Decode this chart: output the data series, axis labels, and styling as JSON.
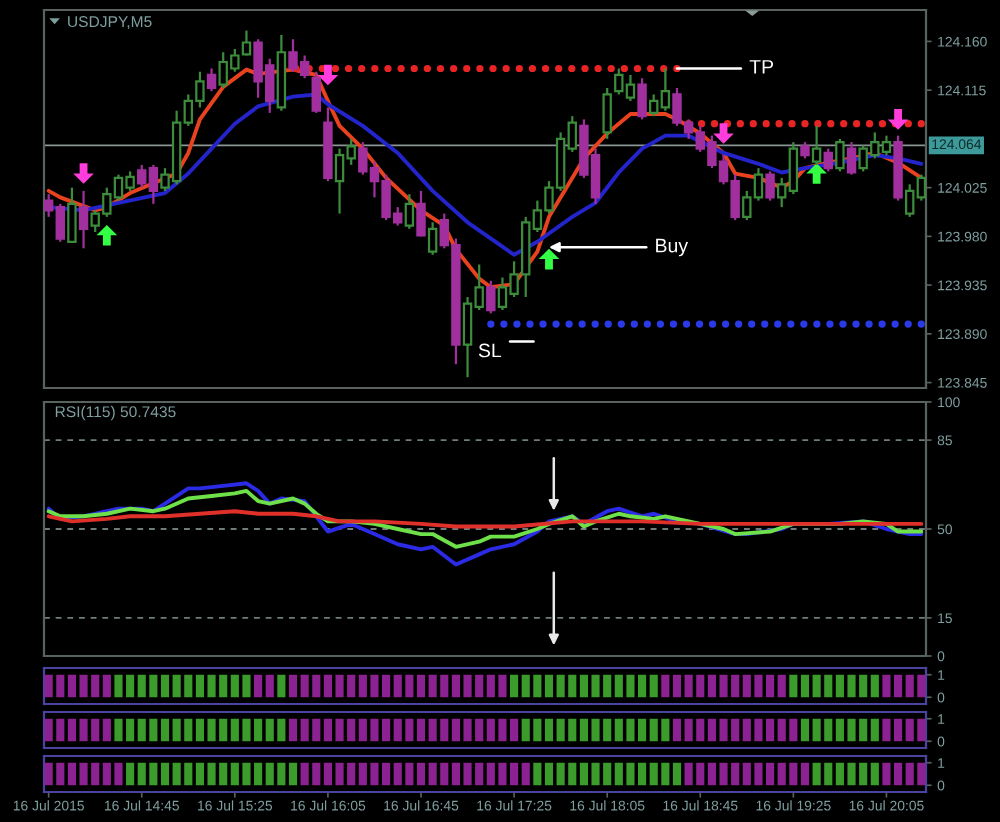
{
  "chart_data": [
    {
      "type": "candlestick",
      "title": "USDJPY,M5",
      "x": [
        "2015-07-16T14:05",
        "2015-07-16T14:10",
        "2015-07-16T14:15",
        "2015-07-16T14:20",
        "2015-07-16T14:25",
        "2015-07-16T14:30",
        "2015-07-16T14:35",
        "2015-07-16T14:40",
        "2015-07-16T14:45",
        "2015-07-16T14:50",
        "2015-07-16T14:55",
        "2015-07-16T15:00",
        "2015-07-16T15:05",
        "2015-07-16T15:10",
        "2015-07-16T15:15",
        "2015-07-16T15:20",
        "2015-07-16T15:25",
        "2015-07-16T15:30",
        "2015-07-16T15:35",
        "2015-07-16T15:40",
        "2015-07-16T15:45",
        "2015-07-16T15:50",
        "2015-07-16T15:55",
        "2015-07-16T16:00",
        "2015-07-16T16:05",
        "2015-07-16T16:10",
        "2015-07-16T16:15",
        "2015-07-16T16:20",
        "2015-07-16T16:25",
        "2015-07-16T16:30",
        "2015-07-16T16:35",
        "2015-07-16T16:40",
        "2015-07-16T16:45",
        "2015-07-16T16:50",
        "2015-07-16T16:55",
        "2015-07-16T17:00",
        "2015-07-16T17:05",
        "2015-07-16T17:10",
        "2015-07-16T17:15",
        "2015-07-16T17:20",
        "2015-07-16T17:25",
        "2015-07-16T17:30",
        "2015-07-16T17:35",
        "2015-07-16T17:40",
        "2015-07-16T17:45",
        "2015-07-16T17:50",
        "2015-07-16T17:55",
        "2015-07-16T18:00",
        "2015-07-16T18:05",
        "2015-07-16T18:10",
        "2015-07-16T18:15",
        "2015-07-16T18:20",
        "2015-07-16T18:25",
        "2015-07-16T18:30",
        "2015-07-16T18:35",
        "2015-07-16T18:40",
        "2015-07-16T18:45",
        "2015-07-16T18:50",
        "2015-07-16T18:55",
        "2015-07-16T19:00",
        "2015-07-16T19:05",
        "2015-07-16T19:10",
        "2015-07-16T19:15",
        "2015-07-16T19:20",
        "2015-07-16T19:25",
        "2015-07-16T19:30",
        "2015-07-16T19:35",
        "2015-07-16T19:40",
        "2015-07-16T19:45",
        "2015-07-16T19:50",
        "2015-07-16T19:55",
        "2015-07-16T20:00",
        "2015-07-16T20:05",
        "2015-07-16T20:10",
        "2015-07-16T20:15",
        "2015-07-16T20:20"
      ],
      "ohlc": [
        [
          124.013,
          124.019,
          123.998,
          124.004
        ],
        [
          124.007,
          124.01,
          123.975,
          123.978
        ],
        [
          123.975,
          124.025,
          123.974,
          124.01
        ],
        [
          124.007,
          124.022,
          123.969,
          123.987
        ],
        [
          123.99,
          124.004,
          123.984,
          124.001
        ],
        [
          124.001,
          124.025,
          123.998,
          124.019
        ],
        [
          124.016,
          124.037,
          124.013,
          124.034
        ],
        [
          124.025,
          124.04,
          124.022,
          124.035
        ],
        [
          124.041,
          124.046,
          124.025,
          124.029
        ],
        [
          124.043,
          124.046,
          124.01,
          124.022
        ],
        [
          124.025,
          124.043,
          124.022,
          124.037
        ],
        [
          124.031,
          124.096,
          124.028,
          124.085
        ],
        [
          124.085,
          124.111,
          124.082,
          124.105
        ],
        [
          124.105,
          124.132,
          124.099,
          124.123
        ],
        [
          124.129,
          124.135,
          124.114,
          124.117
        ],
        [
          124.12,
          124.15,
          124.117,
          124.141
        ],
        [
          124.135,
          124.153,
          124.132,
          124.147
        ],
        [
          124.148,
          124.17,
          124.147,
          124.159
        ],
        [
          124.159,
          124.162,
          124.108,
          124.123
        ],
        [
          124.138,
          124.144,
          124.094,
          124.105
        ],
        [
          124.099,
          124.166,
          124.096,
          124.15
        ],
        [
          124.15,
          124.162,
          124.132,
          124.135
        ],
        [
          124.141,
          124.147,
          124.126,
          124.129
        ],
        [
          124.126,
          124.132,
          124.094,
          124.096
        ],
        [
          124.085,
          124.099,
          124.031,
          124.034
        ],
        [
          124.031,
          124.061,
          124.001,
          124.055
        ],
        [
          124.052,
          124.07,
          124.046,
          124.063
        ],
        [
          124.061,
          124.067,
          124.037,
          124.04
        ],
        [
          124.043,
          124.049,
          124.016,
          124.031
        ],
        [
          124.031,
          124.037,
          123.995,
          123.998
        ],
        [
          124.001,
          124.007,
          123.99,
          123.993
        ],
        [
          123.99,
          124.019,
          123.987,
          124.01
        ],
        [
          124.01,
          124.022,
          123.98,
          123.981
        ],
        [
          123.966,
          123.993,
          123.963,
          123.987
        ],
        [
          123.995,
          124.001,
          123.969,
          123.972
        ],
        [
          123.972,
          123.978,
          123.862,
          123.88
        ],
        [
          123.88,
          123.924,
          123.85,
          123.918
        ],
        [
          123.915,
          123.954,
          123.912,
          123.933
        ],
        [
          123.933,
          123.939,
          123.909,
          123.912
        ],
        [
          123.915,
          123.942,
          123.912,
          123.933
        ],
        [
          123.927,
          123.957,
          123.924,
          123.945
        ],
        [
          123.945,
          123.998,
          123.924,
          123.993
        ],
        [
          123.987,
          124.013,
          123.984,
          124.004
        ],
        [
          124.004,
          124.031,
          124.001,
          124.025
        ],
        [
          124.025,
          124.076,
          124.022,
          124.07
        ],
        [
          124.061,
          124.091,
          124.058,
          124.085
        ],
        [
          124.082,
          124.088,
          124.034,
          124.037
        ],
        [
          124.055,
          124.061,
          124.01,
          124.016
        ],
        [
          124.076,
          124.117,
          124.07,
          124.111
        ],
        [
          124.114,
          124.135,
          124.111,
          124.129
        ],
        [
          124.108,
          124.129,
          124.105,
          124.12
        ],
        [
          124.12,
          124.126,
          124.088,
          124.091
        ],
        [
          124.094,
          124.111,
          124.091,
          124.105
        ],
        [
          124.099,
          124.135,
          124.096,
          124.114
        ],
        [
          124.111,
          124.117,
          124.082,
          124.085
        ],
        [
          124.085,
          124.088,
          124.07,
          124.076
        ],
        [
          124.076,
          124.082,
          124.058,
          124.061
        ],
        [
          124.067,
          124.073,
          124.043,
          124.046
        ],
        [
          124.049,
          124.055,
          124.028,
          124.031
        ],
        [
          124.031,
          124.037,
          123.995,
          123.998
        ],
        [
          123.998,
          124.022,
          123.995,
          124.016
        ],
        [
          124.016,
          124.043,
          124.013,
          124.037
        ],
        [
          124.037,
          124.04,
          124.013,
          124.016
        ],
        [
          124.016,
          124.034,
          124.007,
          124.028
        ],
        [
          124.022,
          124.067,
          124.019,
          124.061
        ],
        [
          124.063,
          124.067,
          124.052,
          124.055
        ],
        [
          124.049,
          124.082,
          124.046,
          124.061
        ],
        [
          124.057,
          124.061,
          124.04,
          124.043
        ],
        [
          124.043,
          124.07,
          124.04,
          124.067
        ],
        [
          124.061,
          124.067,
          124.037,
          124.039
        ],
        [
          124.043,
          124.064,
          124.04,
          124.061
        ],
        [
          124.055,
          124.076,
          124.052,
          124.067
        ],
        [
          124.058,
          124.073,
          124.055,
          124.067
        ],
        [
          124.067,
          124.073,
          124.013,
          124.016
        ],
        [
          124.001,
          124.028,
          123.998,
          124.022
        ],
        [
          124.016,
          124.037,
          124.013,
          124.034
        ]
      ],
      "colors": [
        "#a1309e",
        "#a1309e",
        "#3c8c3c",
        "#a1309e",
        "#3c8c3c",
        "#3c8c3c",
        "#3c8c3c",
        "#3c8c3c",
        "#a1309e",
        "#a1309e",
        "#3c8c3c",
        "#3c8c3c",
        "#3c8c3c",
        "#3c8c3c",
        "#a1309e",
        "#3c8c3c",
        "#3c8c3c",
        "#3c8c3c",
        "#a1309e",
        "#a1309e",
        "#3c8c3c",
        "#a1309e",
        "#a1309e",
        "#a1309e",
        "#a1309e",
        "#3c8c3c",
        "#3c8c3c",
        "#a1309e",
        "#a1309e",
        "#a1309e",
        "#a1309e",
        "#3c8c3c",
        "#a1309e",
        "#3c8c3c",
        "#a1309e",
        "#a1309e",
        "#3c8c3c",
        "#3c8c3c",
        "#a1309e",
        "#3c8c3c",
        "#3c8c3c",
        "#3c8c3c",
        "#3c8c3c",
        "#3c8c3c",
        "#3c8c3c",
        "#3c8c3c",
        "#a1309e",
        "#a1309e",
        "#3c8c3c",
        "#3c8c3c",
        "#3c8c3c",
        "#a1309e",
        "#3c8c3c",
        "#3c8c3c",
        "#a1309e",
        "#a1309e",
        "#a1309e",
        "#a1309e",
        "#a1309e",
        "#a1309e",
        "#3c8c3c",
        "#3c8c3c",
        "#a1309e",
        "#3c8c3c",
        "#3c8c3c",
        "#a1309e",
        "#3c8c3c",
        "#a1309e",
        "#3c8c3c",
        "#a1309e",
        "#3c8c3c",
        "#3c8c3c",
        "#3c8c3c",
        "#a1309e",
        "#3c8c3c",
        "#3c8c3c"
      ],
      "series": [
        {
          "type": "line",
          "color": "#e8421e",
          "x": [
            "2015-07-16T14:05",
            "2015-07-16T14:10",
            "2015-07-16T14:25",
            "2015-07-16T14:30",
            "2015-07-16T14:40",
            "2015-07-16T14:50",
            "2015-07-16T15:00",
            "2015-07-16T15:05",
            "2015-07-16T15:10",
            "2015-07-16T15:20",
            "2015-07-16T15:30",
            "2015-07-16T15:35",
            "2015-07-16T15:50",
            "2015-07-16T16:00",
            "2015-07-16T16:05",
            "2015-07-16T16:10",
            "2015-07-16T16:20",
            "2015-07-16T16:30",
            "2015-07-16T16:45",
            "2015-07-16T16:55",
            "2015-07-16T17:00",
            "2015-07-16T17:10",
            "2015-07-16T17:15",
            "2015-07-16T17:25",
            "2015-07-16T17:35",
            "2015-07-16T17:40",
            "2015-07-16T17:50",
            "2015-07-16T17:55",
            "2015-07-16T18:05",
            "2015-07-16T18:15",
            "2015-07-16T18:20",
            "2015-07-16T18:30",
            "2015-07-16T18:35",
            "2015-07-16T18:45",
            "2015-07-16T18:55",
            "2015-07-16T19:00",
            "2015-07-16T19:10",
            "2015-07-16T19:20",
            "2015-07-16T19:25",
            "2015-07-16T19:30",
            "2015-07-16T19:40",
            "2015-07-16T19:50",
            "2015-07-16T20:00",
            "2015-07-16T20:10",
            "2015-07-16T20:20"
          ],
          "values": [
            124.022,
            124.016,
            124.004,
            124.007,
            124.02,
            124.029,
            124.038,
            124.057,
            124.088,
            124.118,
            124.134,
            124.13,
            124.134,
            124.129,
            124.105,
            124.082,
            124.061,
            124.034,
            124.004,
            123.99,
            123.968,
            123.941,
            123.933,
            123.936,
            123.966,
            123.998,
            124.034,
            124.052,
            124.075,
            124.093,
            124.093,
            124.093,
            124.088,
            124.075,
            124.057,
            124.038,
            124.034,
            124.025,
            124.031,
            124.043,
            124.048,
            124.052,
            124.057,
            124.048,
            124.034
          ]
        },
        {
          "type": "line",
          "color": "#2424cc",
          "x": [
            "2015-07-16T14:05",
            "2015-07-16T14:20",
            "2015-07-16T14:35",
            "2015-07-16T14:55",
            "2015-07-16T15:05",
            "2015-07-16T15:15",
            "2015-07-16T15:25",
            "2015-07-16T15:35",
            "2015-07-16T15:50",
            "2015-07-16T16:00",
            "2015-07-16T16:05",
            "2015-07-16T16:20",
            "2015-07-16T16:35",
            "2015-07-16T16:50",
            "2015-07-16T17:05",
            "2015-07-16T17:25",
            "2015-07-16T17:35",
            "2015-07-16T17:50",
            "2015-07-16T18:00",
            "2015-07-16T18:10",
            "2015-07-16T18:20",
            "2015-07-16T18:30",
            "2015-07-16T18:40",
            "2015-07-16T18:55",
            "2015-07-16T19:10",
            "2015-07-16T19:20",
            "2015-07-16T19:30",
            "2015-07-16T19:45",
            "2015-07-16T20:00",
            "2015-07-16T20:10",
            "2015-07-16T20:20"
          ],
          "values": [
            124.007,
            124.004,
            124.011,
            124.02,
            124.038,
            124.061,
            124.084,
            124.1,
            124.109,
            124.111,
            124.102,
            124.082,
            124.057,
            124.022,
            123.993,
            123.963,
            123.975,
            123.998,
            124.011,
            124.039,
            124.061,
            124.073,
            124.073,
            124.057,
            124.047,
            124.039,
            124.043,
            124.048,
            124.055,
            124.052,
            124.047
          ]
        },
        {
          "type": "line",
          "line_style": "dotted",
          "color": "#e82424",
          "x": [
            "2015-07-16T15:40",
            "2015-07-16T18:35"
          ],
          "values": [
            124.135,
            124.135
          ]
        },
        {
          "type": "line",
          "line_style": "dotted",
          "color": "#e82424",
          "x": [
            "2015-07-16T18:40",
            "2015-07-16T20:20"
          ],
          "values": [
            124.084,
            124.084
          ]
        },
        {
          "type": "line",
          "line_style": "dotted",
          "color": "#2a3ae8",
          "x": [
            "2015-07-16T17:15",
            "2015-07-16T20:20"
          ],
          "values": [
            123.899,
            123.899
          ]
        },
        {
          "type": "scatter",
          "marker": "triangle",
          "color": "#33ff44",
          "x": [
            "2015-07-16T14:30",
            "2015-07-16T17:40",
            "2015-07-16T19:35"
          ],
          "values": [
            123.981,
            123.959,
            124.038
          ]
        },
        {
          "type": "scatter",
          "marker": "triangle_down",
          "color": "#ff3ddc",
          "x": [
            "2015-07-16T14:20",
            "2015-07-16T16:05",
            "2015-07-16T18:55",
            "2015-07-16T20:10"
          ],
          "values": [
            124.038,
            124.129,
            124.075,
            124.088
          ]
        }
      ],
      "xlim": [
        "2015-07-16T14:03",
        "2015-07-16T20:22"
      ],
      "ylim": [
        123.84,
        124.189
      ],
      "yticks": [
        {
          "value": 123.845,
          "label": "123.845"
        },
        {
          "value": 123.89,
          "label": "123.890"
        },
        {
          "value": 123.935,
          "label": "123.935"
        },
        {
          "value": 123.98,
          "label": "123.980"
        },
        {
          "value": 124.025,
          "label": "124.025"
        },
        {
          "value": 124.115,
          "label": "124.115"
        },
        {
          "value": 124.16,
          "label": "124.160"
        }
      ],
      "ref_lines": [
        {
          "axis": "y",
          "value": 124.064,
          "label": "124.064",
          "color": "#8a9595"
        }
      ],
      "annotations": [
        {
          "text": "TP",
          "x": "2015-07-16T18:35",
          "y": 124.135
        },
        {
          "text": "Buy",
          "x": "2015-07-16T17:40",
          "y": 123.97
        },
        "SL"
      ],
      "tick_labels": "y"
    },
    {
      "type": "line",
      "title": "RSI(115) 50.7435",
      "series": [
        {
          "type": "line",
          "color": "#2b2be6",
          "x": [
            "2015-07-16T14:05",
            "2015-07-16T14:10",
            "2015-07-16T14:20",
            "2015-07-16T14:30",
            "2015-07-16T14:35",
            "2015-07-16T14:45",
            "2015-07-16T14:50",
            "2015-07-16T14:55",
            "2015-07-16T15:05",
            "2015-07-16T15:10",
            "2015-07-16T15:20",
            "2015-07-16T15:30",
            "2015-07-16T15:35",
            "2015-07-16T15:40",
            "2015-07-16T15:45",
            "2015-07-16T15:55",
            "2015-07-16T16:00",
            "2015-07-16T16:05",
            "2015-07-16T16:15",
            "2015-07-16T16:25",
            "2015-07-16T16:35",
            "2015-07-16T16:45",
            "2015-07-16T16:50",
            "2015-07-16T17:00",
            "2015-07-16T17:10",
            "2015-07-16T17:15",
            "2015-07-16T17:25",
            "2015-07-16T17:35",
            "2015-07-16T17:40",
            "2015-07-16T17:50",
            "2015-07-16T17:55",
            "2015-07-16T18:05",
            "2015-07-16T18:10",
            "2015-07-16T18:20",
            "2015-07-16T18:25",
            "2015-07-16T18:35",
            "2015-07-16T18:45",
            "2015-07-16T19:00",
            "2015-07-16T19:05",
            "2015-07-16T19:20",
            "2015-07-16T19:25",
            "2015-07-16T19:40",
            "2015-07-16T19:55",
            "2015-07-16T20:05",
            "2015-07-16T20:15",
            "2015-07-16T20:20"
          ],
          "values": [
            58,
            54,
            55,
            57,
            58,
            58,
            57,
            60,
            66,
            66,
            67,
            68,
            65,
            60,
            62,
            61,
            55,
            49,
            52,
            48,
            44,
            42,
            43,
            36,
            40,
            42,
            44,
            49,
            53,
            55,
            52,
            57,
            58,
            55,
            56,
            53,
            52,
            48,
            48,
            50,
            52,
            52,
            53,
            50,
            48,
            48
          ]
        },
        {
          "type": "line",
          "color": "#6ee04a",
          "x": [
            "2015-07-16T14:05",
            "2015-07-16T14:10",
            "2015-07-16T14:20",
            "2015-07-16T14:30",
            "2015-07-16T14:40",
            "2015-07-16T14:50",
            "2015-07-16T14:55",
            "2015-07-16T15:05",
            "2015-07-16T15:15",
            "2015-07-16T15:25",
            "2015-07-16T15:30",
            "2015-07-16T15:35",
            "2015-07-16T15:40",
            "2015-07-16T15:50",
            "2015-07-16T15:55",
            "2015-07-16T16:00",
            "2015-07-16T16:05",
            "2015-07-16T16:15",
            "2015-07-16T16:25",
            "2015-07-16T16:35",
            "2015-07-16T16:45",
            "2015-07-16T16:50",
            "2015-07-16T17:00",
            "2015-07-16T17:10",
            "2015-07-16T17:15",
            "2015-07-16T17:25",
            "2015-07-16T17:35",
            "2015-07-16T17:40",
            "2015-07-16T17:50",
            "2015-07-16T17:55",
            "2015-07-16T18:00",
            "2015-07-16T18:10",
            "2015-07-16T18:15",
            "2015-07-16T18:25",
            "2015-07-16T18:30",
            "2015-07-16T18:40",
            "2015-07-16T18:45",
            "2015-07-16T18:55",
            "2015-07-16T19:00",
            "2015-07-16T19:15",
            "2015-07-16T19:25",
            "2015-07-16T19:35",
            "2015-07-16T19:45",
            "2015-07-16T19:55",
            "2015-07-16T20:05",
            "2015-07-16T20:10",
            "2015-07-16T20:20"
          ],
          "values": [
            57,
            55,
            55,
            56,
            58,
            57,
            58,
            62,
            63,
            64,
            65,
            61,
            60,
            62,
            60,
            56,
            53,
            53,
            52,
            50,
            48,
            48,
            43,
            45,
            47,
            47,
            50,
            52,
            55,
            51,
            53,
            56,
            55,
            54,
            55,
            53,
            52,
            50,
            48,
            49,
            52,
            52,
            52,
            53,
            52,
            49,
            49
          ]
        },
        {
          "type": "line",
          "color": "#e0302a",
          "x": [
            "2015-07-16T14:05",
            "2015-07-16T14:15",
            "2015-07-16T14:30",
            "2015-07-16T14:40",
            "2015-07-16T14:55",
            "2015-07-16T15:10",
            "2015-07-16T15:25",
            "2015-07-16T15:35",
            "2015-07-16T15:50",
            "2015-07-16T16:00",
            "2015-07-16T16:10",
            "2015-07-16T16:25",
            "2015-07-16T16:45",
            "2015-07-16T17:00",
            "2015-07-16T17:10",
            "2015-07-16T17:25",
            "2015-07-16T17:50",
            "2015-07-16T18:20",
            "2015-07-16T18:45",
            "2015-07-16T19:15",
            "2015-07-16T19:40",
            "2015-07-16T20:05",
            "2015-07-16T20:20"
          ],
          "values": [
            55,
            53,
            54,
            55,
            55,
            56,
            57,
            56,
            56,
            55,
            53,
            53,
            52,
            51,
            51,
            51,
            53,
            53,
            52,
            52,
            52,
            52,
            52
          ]
        }
      ],
      "xlim": [
        "2015-07-16T14:03",
        "2015-07-16T20:22"
      ],
      "ylim": [
        0,
        100
      ],
      "yticks": [
        0,
        15,
        50,
        85,
        100
      ],
      "ref_lines": [
        {
          "axis": "y",
          "value": 85,
          "line_style": "dashed",
          "color": "#6f7d7d"
        },
        {
          "axis": "y",
          "value": 50,
          "line_style": "dashed",
          "color": "#6f7d7d"
        },
        {
          "axis": "y",
          "value": 15,
          "line_style": "dashed",
          "color": "#6f7d7d"
        }
      ],
      "tick_labels": "y"
    },
    {
      "type": "bar",
      "x": [
        "2015-07-16T14:05",
        "2015-07-16T14:10",
        "2015-07-16T14:15",
        "2015-07-16T14:20",
        "2015-07-16T14:25",
        "2015-07-16T14:30",
        "2015-07-16T14:35",
        "2015-07-16T14:40",
        "2015-07-16T14:45",
        "2015-07-16T14:50",
        "2015-07-16T14:55",
        "2015-07-16T15:00",
        "2015-07-16T15:05",
        "2015-07-16T15:10",
        "2015-07-16T15:15",
        "2015-07-16T15:20",
        "2015-07-16T15:25",
        "2015-07-16T15:30",
        "2015-07-16T15:35",
        "2015-07-16T15:40",
        "2015-07-16T15:45",
        "2015-07-16T15:50",
        "2015-07-16T15:55",
        "2015-07-16T16:00",
        "2015-07-16T16:05",
        "2015-07-16T16:10",
        "2015-07-16T16:15",
        "2015-07-16T16:20",
        "2015-07-16T16:25",
        "2015-07-16T16:30",
        "2015-07-16T16:35",
        "2015-07-16T16:40",
        "2015-07-16T16:45",
        "2015-07-16T16:50",
        "2015-07-16T16:55",
        "2015-07-16T17:00",
        "2015-07-16T17:05",
        "2015-07-16T17:10",
        "2015-07-16T17:15",
        "2015-07-16T17:20",
        "2015-07-16T17:25",
        "2015-07-16T17:30",
        "2015-07-16T17:35",
        "2015-07-16T17:40",
        "2015-07-16T17:45",
        "2015-07-16T17:50",
        "2015-07-16T17:55",
        "2015-07-16T18:00",
        "2015-07-16T18:05",
        "2015-07-16T18:10",
        "2015-07-16T18:15",
        "2015-07-16T18:20",
        "2015-07-16T18:25",
        "2015-07-16T18:30",
        "2015-07-16T18:35",
        "2015-07-16T18:40",
        "2015-07-16T18:45",
        "2015-07-16T18:50",
        "2015-07-16T18:55",
        "2015-07-16T19:00",
        "2015-07-16T19:05",
        "2015-07-16T19:10",
        "2015-07-16T19:15",
        "2015-07-16T19:20",
        "2015-07-16T19:25",
        "2015-07-16T19:30",
        "2015-07-16T19:35",
        "2015-07-16T19:40",
        "2015-07-16T19:45",
        "2015-07-16T19:50",
        "2015-07-16T19:55",
        "2015-07-16T20:00",
        "2015-07-16T20:05",
        "2015-07-16T20:10",
        "2015-07-16T20:15",
        "2015-07-16T20:20"
      ],
      "values": [
        1,
        1,
        1,
        1,
        1,
        1,
        1,
        1,
        1,
        1,
        1,
        1,
        1,
        1,
        1,
        1,
        1,
        1,
        1,
        1,
        1,
        1,
        1,
        1,
        1,
        1,
        1,
        1,
        1,
        1,
        1,
        1,
        1,
        1,
        1,
        1,
        1,
        1,
        1,
        1,
        1,
        1,
        1,
        1,
        1,
        1,
        1,
        1,
        1,
        1,
        1,
        1,
        1,
        1,
        1,
        1,
        1,
        1,
        1,
        1,
        1,
        1,
        1,
        1,
        1,
        1,
        1,
        1,
        1,
        1,
        1,
        1,
        1,
        1,
        1,
        1
      ],
      "colors": [
        "#8c2291",
        "#8c2291",
        "#8c2291",
        "#8c2291",
        "#8c2291",
        "#8c2291",
        "#3b9b2b",
        "#3b9b2b",
        "#3b9b2b",
        "#3b9b2b",
        "#3b9b2b",
        "#3b9b2b",
        "#3b9b2b",
        "#3b9b2b",
        "#3b9b2b",
        "#3b9b2b",
        "#3b9b2b",
        "#3b9b2b",
        "#8c2291",
        "#8c2291",
        "#3b9b2b",
        "#8c2291",
        "#8c2291",
        "#8c2291",
        "#8c2291",
        "#8c2291",
        "#8c2291",
        "#8c2291",
        "#8c2291",
        "#8c2291",
        "#8c2291",
        "#8c2291",
        "#8c2291",
        "#8c2291",
        "#8c2291",
        "#8c2291",
        "#8c2291",
        "#8c2291",
        "#8c2291",
        "#8c2291",
        "#3b9b2b",
        "#3b9b2b",
        "#3b9b2b",
        "#3b9b2b",
        "#3b9b2b",
        "#3b9b2b",
        "#3b9b2b",
        "#3b9b2b",
        "#3b9b2b",
        "#3b9b2b",
        "#3b9b2b",
        "#3b9b2b",
        "#3b9b2b",
        "#8c2291",
        "#8c2291",
        "#8c2291",
        "#8c2291",
        "#8c2291",
        "#8c2291",
        "#8c2291",
        "#8c2291",
        "#8c2291",
        "#8c2291",
        "#8c2291",
        "#3b9b2b",
        "#3b9b2b",
        "#3b9b2b",
        "#3b9b2b",
        "#3b9b2b",
        "#3b9b2b",
        "#3b9b2b",
        "#3b9b2b",
        "#8c2291",
        "#8c2291",
        "#8c2291",
        "#8c2291"
      ],
      "xlim": [
        "2015-07-16T14:03",
        "2015-07-16T20:22"
      ],
      "ylim": [
        -0.3,
        1.3
      ],
      "yticks": [
        0,
        1
      ],
      "tick_labels": "y"
    },
    {
      "type": "bar",
      "x": [
        "2015-07-16T14:05",
        "2015-07-16T14:10",
        "2015-07-16T14:15",
        "2015-07-16T14:20",
        "2015-07-16T14:25",
        "2015-07-16T14:30",
        "2015-07-16T14:35",
        "2015-07-16T14:40",
        "2015-07-16T14:45",
        "2015-07-16T14:50",
        "2015-07-16T14:55",
        "2015-07-16T15:00",
        "2015-07-16T15:05",
        "2015-07-16T15:10",
        "2015-07-16T15:15",
        "2015-07-16T15:20",
        "2015-07-16T15:25",
        "2015-07-16T15:30",
        "2015-07-16T15:35",
        "2015-07-16T15:40",
        "2015-07-16T15:45",
        "2015-07-16T15:50",
        "2015-07-16T15:55",
        "2015-07-16T16:00",
        "2015-07-16T16:05",
        "2015-07-16T16:10",
        "2015-07-16T16:15",
        "2015-07-16T16:20",
        "2015-07-16T16:25",
        "2015-07-16T16:30",
        "2015-07-16T16:35",
        "2015-07-16T16:40",
        "2015-07-16T16:45",
        "2015-07-16T16:50",
        "2015-07-16T16:55",
        "2015-07-16T17:00",
        "2015-07-16T17:05",
        "2015-07-16T17:10",
        "2015-07-16T17:15",
        "2015-07-16T17:20",
        "2015-07-16T17:25",
        "2015-07-16T17:30",
        "2015-07-16T17:35",
        "2015-07-16T17:40",
        "2015-07-16T17:45",
        "2015-07-16T17:50",
        "2015-07-16T17:55",
        "2015-07-16T18:00",
        "2015-07-16T18:05",
        "2015-07-16T18:10",
        "2015-07-16T18:15",
        "2015-07-16T18:20",
        "2015-07-16T18:25",
        "2015-07-16T18:30",
        "2015-07-16T18:35",
        "2015-07-16T18:40",
        "2015-07-16T18:45",
        "2015-07-16T18:50",
        "2015-07-16T18:55",
        "2015-07-16T19:00",
        "2015-07-16T19:05",
        "2015-07-16T19:10",
        "2015-07-16T19:15",
        "2015-07-16T19:20",
        "2015-07-16T19:25",
        "2015-07-16T19:30",
        "2015-07-16T19:35",
        "2015-07-16T19:40",
        "2015-07-16T19:45",
        "2015-07-16T19:50",
        "2015-07-16T19:55",
        "2015-07-16T20:00",
        "2015-07-16T20:05",
        "2015-07-16T20:10",
        "2015-07-16T20:15",
        "2015-07-16T20:20"
      ],
      "values": [
        1,
        1,
        1,
        1,
        1,
        1,
        1,
        1,
        1,
        1,
        1,
        1,
        1,
        1,
        1,
        1,
        1,
        1,
        1,
        1,
        1,
        1,
        1,
        1,
        1,
        1,
        1,
        1,
        1,
        1,
        1,
        1,
        1,
        1,
        1,
        1,
        1,
        1,
        1,
        1,
        1,
        1,
        1,
        1,
        1,
        1,
        1,
        1,
        1,
        1,
        1,
        1,
        1,
        1,
        1,
        1,
        1,
        1,
        1,
        1,
        1,
        1,
        1,
        1,
        1,
        1,
        1,
        1,
        1,
        1,
        1,
        1,
        1,
        1,
        1,
        1
      ],
      "colors": [
        "#8c2291",
        "#8c2291",
        "#8c2291",
        "#8c2291",
        "#8c2291",
        "#8c2291",
        "#3b9b2b",
        "#3b9b2b",
        "#3b9b2b",
        "#3b9b2b",
        "#3b9b2b",
        "#3b9b2b",
        "#3b9b2b",
        "#3b9b2b",
        "#3b9b2b",
        "#3b9b2b",
        "#3b9b2b",
        "#3b9b2b",
        "#3b9b2b",
        "#3b9b2b",
        "#3b9b2b",
        "#8c2291",
        "#8c2291",
        "#8c2291",
        "#8c2291",
        "#8c2291",
        "#8c2291",
        "#8c2291",
        "#8c2291",
        "#8c2291",
        "#8c2291",
        "#8c2291",
        "#8c2291",
        "#8c2291",
        "#8c2291",
        "#8c2291",
        "#8c2291",
        "#8c2291",
        "#8c2291",
        "#8c2291",
        "#8c2291",
        "#3b9b2b",
        "#3b9b2b",
        "#3b9b2b",
        "#3b9b2b",
        "#3b9b2b",
        "#3b9b2b",
        "#3b9b2b",
        "#3b9b2b",
        "#3b9b2b",
        "#3b9b2b",
        "#3b9b2b",
        "#3b9b2b",
        "#3b9b2b",
        "#8c2291",
        "#8c2291",
        "#8c2291",
        "#8c2291",
        "#8c2291",
        "#8c2291",
        "#8c2291",
        "#8c2291",
        "#8c2291",
        "#8c2291",
        "#8c2291",
        "#3b9b2b",
        "#3b9b2b",
        "#3b9b2b",
        "#3b9b2b",
        "#3b9b2b",
        "#3b9b2b",
        "#3b9b2b",
        "#8c2291",
        "#8c2291",
        "#8c2291",
        "#8c2291"
      ],
      "xlim": [
        "2015-07-16T14:03",
        "2015-07-16T20:22"
      ],
      "ylim": [
        -0.3,
        1.3
      ],
      "yticks": [
        0,
        1
      ],
      "tick_labels": "y"
    },
    {
      "type": "bar",
      "x": [
        "2015-07-16T14:05",
        "2015-07-16T14:10",
        "2015-07-16T14:15",
        "2015-07-16T14:20",
        "2015-07-16T14:25",
        "2015-07-16T14:30",
        "2015-07-16T14:35",
        "2015-07-16T14:40",
        "2015-07-16T14:45",
        "2015-07-16T14:50",
        "2015-07-16T14:55",
        "2015-07-16T15:00",
        "2015-07-16T15:05",
        "2015-07-16T15:10",
        "2015-07-16T15:15",
        "2015-07-16T15:20",
        "2015-07-16T15:25",
        "2015-07-16T15:30",
        "2015-07-16T15:35",
        "2015-07-16T15:40",
        "2015-07-16T15:45",
        "2015-07-16T15:50",
        "2015-07-16T15:55",
        "2015-07-16T16:00",
        "2015-07-16T16:05",
        "2015-07-16T16:10",
        "2015-07-16T16:15",
        "2015-07-16T16:20",
        "2015-07-16T16:25",
        "2015-07-16T16:30",
        "2015-07-16T16:35",
        "2015-07-16T16:40",
        "2015-07-16T16:45",
        "2015-07-16T16:50",
        "2015-07-16T16:55",
        "2015-07-16T17:00",
        "2015-07-16T17:05",
        "2015-07-16T17:10",
        "2015-07-16T17:15",
        "2015-07-16T17:20",
        "2015-07-16T17:25",
        "2015-07-16T17:30",
        "2015-07-16T17:35",
        "2015-07-16T17:40",
        "2015-07-16T17:45",
        "2015-07-16T17:50",
        "2015-07-16T17:55",
        "2015-07-16T18:00",
        "2015-07-16T18:05",
        "2015-07-16T18:10",
        "2015-07-16T18:15",
        "2015-07-16T18:20",
        "2015-07-16T18:25",
        "2015-07-16T18:30",
        "2015-07-16T18:35",
        "2015-07-16T18:40",
        "2015-07-16T18:45",
        "2015-07-16T18:50",
        "2015-07-16T18:55",
        "2015-07-16T19:00",
        "2015-07-16T19:05",
        "2015-07-16T19:10",
        "2015-07-16T19:15",
        "2015-07-16T19:20",
        "2015-07-16T19:25",
        "2015-07-16T19:30",
        "2015-07-16T19:35",
        "2015-07-16T19:40",
        "2015-07-16T19:45",
        "2015-07-16T19:50",
        "2015-07-16T19:55",
        "2015-07-16T20:00",
        "2015-07-16T20:05",
        "2015-07-16T20:10",
        "2015-07-16T20:15",
        "2015-07-16T20:20"
      ],
      "values": [
        1,
        1,
        1,
        1,
        1,
        1,
        1,
        1,
        1,
        1,
        1,
        1,
        1,
        1,
        1,
        1,
        1,
        1,
        1,
        1,
        1,
        1,
        1,
        1,
        1,
        1,
        1,
        1,
        1,
        1,
        1,
        1,
        1,
        1,
        1,
        1,
        1,
        1,
        1,
        1,
        1,
        1,
        1,
        1,
        1,
        1,
        1,
        1,
        1,
        1,
        1,
        1,
        1,
        1,
        1,
        1,
        1,
        1,
        1,
        1,
        1,
        1,
        1,
        1,
        1,
        1,
        1,
        1,
        1,
        1,
        1,
        1,
        1,
        1,
        1,
        1
      ],
      "colors": [
        "#8c2291",
        "#8c2291",
        "#8c2291",
        "#8c2291",
        "#8c2291",
        "#8c2291",
        "#8c2291",
        "#3b9b2b",
        "#3b9b2b",
        "#3b9b2b",
        "#3b9b2b",
        "#3b9b2b",
        "#3b9b2b",
        "#3b9b2b",
        "#3b9b2b",
        "#3b9b2b",
        "#3b9b2b",
        "#3b9b2b",
        "#3b9b2b",
        "#3b9b2b",
        "#3b9b2b",
        "#3b9b2b",
        "#8c2291",
        "#8c2291",
        "#8c2291",
        "#8c2291",
        "#8c2291",
        "#8c2291",
        "#8c2291",
        "#8c2291",
        "#8c2291",
        "#8c2291",
        "#8c2291",
        "#8c2291",
        "#8c2291",
        "#8c2291",
        "#8c2291",
        "#8c2291",
        "#8c2291",
        "#8c2291",
        "#8c2291",
        "#8c2291",
        "#3b9b2b",
        "#3b9b2b",
        "#3b9b2b",
        "#3b9b2b",
        "#3b9b2b",
        "#3b9b2b",
        "#3b9b2b",
        "#3b9b2b",
        "#3b9b2b",
        "#3b9b2b",
        "#3b9b2b",
        "#3b9b2b",
        "#3b9b2b",
        "#8c2291",
        "#8c2291",
        "#8c2291",
        "#8c2291",
        "#8c2291",
        "#8c2291",
        "#8c2291",
        "#8c2291",
        "#8c2291",
        "#8c2291",
        "#8c2291",
        "#3b9b2b",
        "#3b9b2b",
        "#3b9b2b",
        "#3b9b2b",
        "#3b9b2b",
        "#3b9b2b",
        "#8c2291",
        "#8c2291",
        "#8c2291",
        "#8c2291"
      ],
      "xlim": [
        "2015-07-16T14:03",
        "2015-07-16T20:22"
      ],
      "ylim": [
        -0.3,
        1.3
      ],
      "yticks": [
        0,
        1
      ],
      "xticks": [
        {
          "value": "2015-07-16T14:05",
          "label": "16 Jul 2015"
        },
        {
          "value": "2015-07-16T14:45",
          "label": "16 Jul 14:45"
        },
        {
          "value": "2015-07-16T15:25",
          "label": "16 Jul 15:25"
        },
        {
          "value": "2015-07-16T16:05",
          "label": "16 Jul 16:05"
        },
        {
          "value": "2015-07-16T16:45",
          "label": "16 Jul 16:45"
        },
        {
          "value": "2015-07-16T17:25",
          "label": "16 Jul 17:25"
        },
        {
          "value": "2015-07-16T18:05",
          "label": "16 Jul 18:05"
        },
        {
          "value": "2015-07-16T18:45",
          "label": "16 Jul 18:45"
        },
        {
          "value": "2015-07-16T19:25",
          "label": "16 Jul 19:25"
        },
        {
          "value": "2015-07-16T20:05",
          "label": "16 Jul 20:05"
        }
      ]
    }
  ]
}
